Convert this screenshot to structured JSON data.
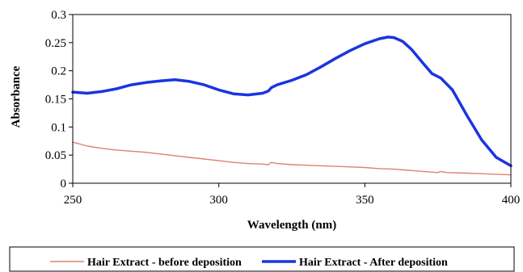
{
  "chart_data": {
    "type": "line",
    "title": "",
    "xlabel": "Wavelength (nm)",
    "ylabel": "Absorbance",
    "xlim": [
      250,
      400
    ],
    "ylim": [
      0,
      0.3
    ],
    "x_ticks": [
      "250",
      "300",
      "350",
      "400"
    ],
    "y_ticks": [
      "0",
      "0.05",
      "0.1",
      "0.15",
      "0.2",
      "0.25",
      "0.3"
    ],
    "grid": false,
    "legend_position": "bottom",
    "series": [
      {
        "name": "Hair Extract - before deposition",
        "color": "#e08070",
        "points": [
          [
            250,
            0.073
          ],
          [
            255,
            0.066
          ],
          [
            260,
            0.062
          ],
          [
            265,
            0.059
          ],
          [
            270,
            0.057
          ],
          [
            275,
            0.055
          ],
          [
            280,
            0.052
          ],
          [
            285,
            0.049
          ],
          [
            290,
            0.046
          ],
          [
            295,
            0.043
          ],
          [
            300,
            0.04
          ],
          [
            305,
            0.037
          ],
          [
            310,
            0.035
          ],
          [
            315,
            0.034
          ],
          [
            317,
            0.033
          ],
          [
            318,
            0.037
          ],
          [
            320,
            0.035
          ],
          [
            325,
            0.033
          ],
          [
            330,
            0.032
          ],
          [
            335,
            0.031
          ],
          [
            340,
            0.03
          ],
          [
            345,
            0.029
          ],
          [
            350,
            0.028
          ],
          [
            355,
            0.026
          ],
          [
            360,
            0.025
          ],
          [
            365,
            0.023
          ],
          [
            370,
            0.021
          ],
          [
            375,
            0.019
          ],
          [
            376,
            0.021
          ],
          [
            378,
            0.019
          ],
          [
            385,
            0.018
          ],
          [
            390,
            0.017
          ],
          [
            395,
            0.016
          ],
          [
            400,
            0.015
          ]
        ]
      },
      {
        "name": "Hair Extract - After deposition",
        "color": "#1a35e0",
        "points": [
          [
            250,
            0.162
          ],
          [
            255,
            0.16
          ],
          [
            260,
            0.163
          ],
          [
            265,
            0.168
          ],
          [
            270,
            0.175
          ],
          [
            275,
            0.179
          ],
          [
            280,
            0.182
          ],
          [
            285,
            0.184
          ],
          [
            290,
            0.181
          ],
          [
            295,
            0.175
          ],
          [
            300,
            0.166
          ],
          [
            305,
            0.159
          ],
          [
            310,
            0.157
          ],
          [
            315,
            0.16
          ],
          [
            317,
            0.164
          ],
          [
            318,
            0.17
          ],
          [
            320,
            0.175
          ],
          [
            325,
            0.183
          ],
          [
            330,
            0.193
          ],
          [
            335,
            0.207
          ],
          [
            340,
            0.222
          ],
          [
            345,
            0.236
          ],
          [
            350,
            0.248
          ],
          [
            355,
            0.257
          ],
          [
            358,
            0.26
          ],
          [
            360,
            0.259
          ],
          [
            363,
            0.252
          ],
          [
            366,
            0.238
          ],
          [
            370,
            0.213
          ],
          [
            373,
            0.195
          ],
          [
            376,
            0.187
          ],
          [
            380,
            0.166
          ],
          [
            385,
            0.12
          ],
          [
            390,
            0.077
          ],
          [
            395,
            0.046
          ],
          [
            400,
            0.031
          ]
        ]
      }
    ]
  }
}
